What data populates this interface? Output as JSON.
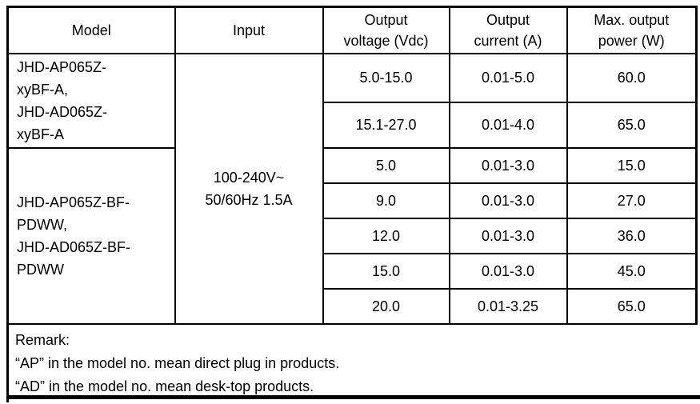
{
  "table": {
    "headers": [
      "Model",
      "Input",
      "Output\nvoltage (Vdc)",
      "Output\ncurrent (A)",
      "Max. output\npower (W)"
    ],
    "model_group_1": "JHD-AP065Z-\nxyBF-A,\nJHD-AD065Z-\nxyBF-A",
    "model_group_2": "JHD-AP065Z-BF-\nPDWW,\nJHD-AD065Z-BF-\nPDWW",
    "input_spec": "100-240V~\n50/60Hz 1.5A",
    "rows": [
      {
        "voltage": "5.0-15.0",
        "current": "0.01-5.0",
        "power": "60.0"
      },
      {
        "voltage": "15.1-27.0",
        "current": "0.01-4.0",
        "power": "65.0"
      },
      {
        "voltage": "5.0",
        "current": "0.01-3.0",
        "power": "15.0"
      },
      {
        "voltage": "9.0",
        "current": "0.01-3.0",
        "power": "27.0"
      },
      {
        "voltage": "12.0",
        "current": "0.01-3.0",
        "power": "36.0"
      },
      {
        "voltage": "15.0",
        "current": "0.01-3.0",
        "power": "45.0"
      },
      {
        "voltage": "20.0",
        "current": "0.01-3.25",
        "power": "65.0"
      }
    ],
    "remark": "Remark:\n“AP” in the model no. mean direct plug in products.\n“AD” in the model no. mean desk-top products.",
    "colors": {
      "border": "#000000",
      "text": "#000000",
      "background": "#ffffff"
    }
  }
}
